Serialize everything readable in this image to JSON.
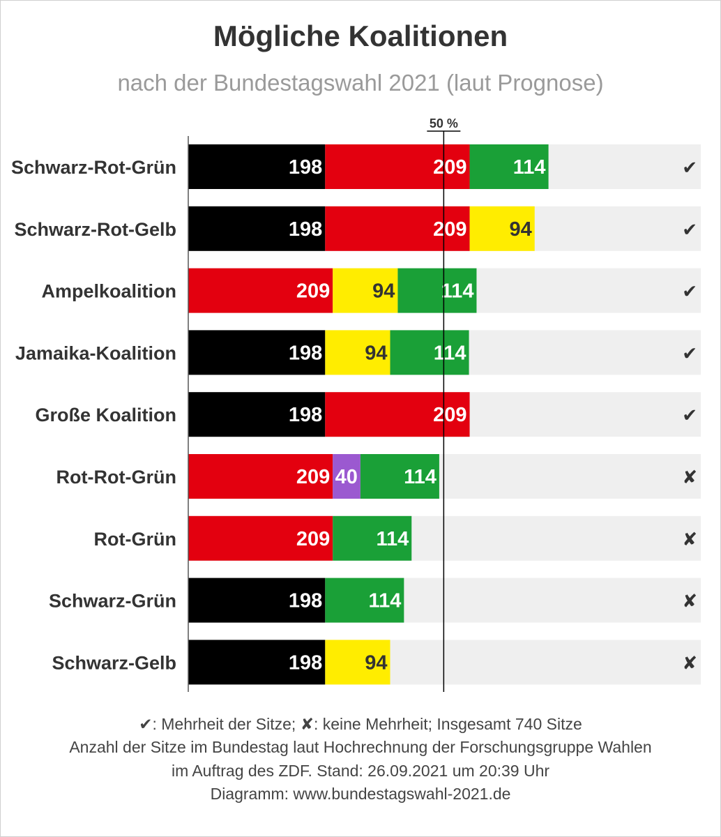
{
  "title": "Mögliche Koalitionen",
  "subtitle": "nach der Bundestagswahl 2021 (laut Prognose)",
  "colors": {
    "Schwarz": "#000000",
    "Rot": "#e3000f",
    "Grün": "#1aa037",
    "Gelb": "#ffed00",
    "Lila": "#9b59d0",
    "background_track": "#efefef"
  },
  "chart_data": {
    "type": "bar",
    "stacked": true,
    "orientation": "horizontal",
    "total_seats": 740,
    "majority_label": "50 %",
    "majority_value": 370,
    "xlim": [
      0,
      740
    ],
    "rows": [
      {
        "label": "Schwarz-Rot-Grün",
        "segments": [
          {
            "party": "Schwarz",
            "value": 198
          },
          {
            "party": "Rot",
            "value": 209
          },
          {
            "party": "Grün",
            "value": 114
          }
        ],
        "majority": "✔"
      },
      {
        "label": "Schwarz-Rot-Gelb",
        "segments": [
          {
            "party": "Schwarz",
            "value": 198
          },
          {
            "party": "Rot",
            "value": 209
          },
          {
            "party": "Gelb",
            "value": 94
          }
        ],
        "majority": "✔"
      },
      {
        "label": "Ampelkoalition",
        "segments": [
          {
            "party": "Rot",
            "value": 209
          },
          {
            "party": "Gelb",
            "value": 94
          },
          {
            "party": "Grün",
            "value": 114
          }
        ],
        "majority": "✔"
      },
      {
        "label": "Jamaika-Koalition",
        "segments": [
          {
            "party": "Schwarz",
            "value": 198
          },
          {
            "party": "Gelb",
            "value": 94
          },
          {
            "party": "Grün",
            "value": 114
          }
        ],
        "majority": "✔"
      },
      {
        "label": "Große Koalition",
        "segments": [
          {
            "party": "Schwarz",
            "value": 198
          },
          {
            "party": "Rot",
            "value": 209
          }
        ],
        "majority": "✔"
      },
      {
        "label": "Rot-Rot-Grün",
        "segments": [
          {
            "party": "Rot",
            "value": 209
          },
          {
            "party": "Lila",
            "value": 40
          },
          {
            "party": "Grün",
            "value": 114
          }
        ],
        "majority": "✘"
      },
      {
        "label": "Rot-Grün",
        "segments": [
          {
            "party": "Rot",
            "value": 209
          },
          {
            "party": "Grün",
            "value": 114
          }
        ],
        "majority": "✘"
      },
      {
        "label": "Schwarz-Grün",
        "segments": [
          {
            "party": "Schwarz",
            "value": 198
          },
          {
            "party": "Grün",
            "value": 114
          }
        ],
        "majority": "✘"
      },
      {
        "label": "Schwarz-Gelb",
        "segments": [
          {
            "party": "Schwarz",
            "value": 198
          },
          {
            "party": "Gelb",
            "value": 94
          }
        ],
        "majority": "✘"
      }
    ]
  },
  "footer": {
    "line1": "✔: Mehrheit der Sitze; ✘: keine Mehrheit; Insgesamt 740 Sitze",
    "line2": "Anzahl der Sitze im Bundestag laut Hochrechnung der Forschungsgruppe Wahlen",
    "line3": "im Auftrag des ZDF. Stand: 26.09.2021 um 20:39 Uhr",
    "line4": "Diagramm: www.bundestagswahl-2021.de"
  }
}
